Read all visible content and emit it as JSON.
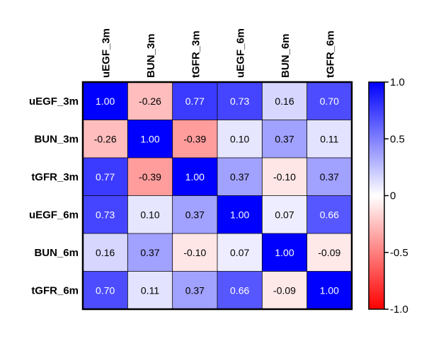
{
  "chart_data": {
    "type": "heatmap",
    "title": "",
    "xlabel": "",
    "ylabel": "",
    "rows": [
      "uEGF_3m",
      "BUN_3m",
      "tGFR_3m",
      "uEGF_6m",
      "BUN_6m",
      "tGFR_6m"
    ],
    "columns": [
      "uEGF_3m",
      "BUN_3m",
      "tGFR_3m",
      "uEGF_6m",
      "BUN_6m",
      "tGFR_6m"
    ],
    "values": [
      [
        1.0,
        -0.26,
        0.77,
        0.73,
        0.16,
        0.7
      ],
      [
        -0.26,
        1.0,
        -0.39,
        0.1,
        0.37,
        0.11
      ],
      [
        0.77,
        -0.39,
        1.0,
        0.37,
        -0.1,
        0.37
      ],
      [
        0.73,
        0.1,
        0.37,
        1.0,
        0.07,
        0.66
      ],
      [
        0.16,
        0.37,
        -0.1,
        0.07,
        1.0,
        -0.09
      ],
      [
        0.7,
        0.11,
        0.37,
        0.66,
        -0.09,
        1.0
      ]
    ],
    "cell_labels": [
      [
        "1.00",
        "-0.26",
        "0.77",
        "0.73",
        "0.16",
        "0.70"
      ],
      [
        "-0.26",
        "1.00",
        "-0.39",
        "0.10",
        "0.37",
        "0.11"
      ],
      [
        "0.77",
        "-0.39",
        "1.00",
        "0.37",
        "-0.10",
        "0.37"
      ],
      [
        "0.73",
        "0.10",
        "0.37",
        "1.00",
        "0.07",
        "0.66"
      ],
      [
        "0.16",
        "0.37",
        "-0.10",
        "0.07",
        "1.00",
        "-0.09"
      ],
      [
        "0.70",
        "0.11",
        "0.37",
        "0.66",
        "-0.09",
        "1.00"
      ]
    ],
    "colorbar": {
      "range": [
        -1.0,
        1.0
      ],
      "ticks": [
        1.0,
        0.5,
        0,
        -0.5,
        -1.0
      ],
      "tick_labels": [
        "1.0",
        "0.5",
        "0",
        "-0.5",
        "-1.0"
      ],
      "colors": {
        "low": "#ff0000",
        "mid": "#ffffff",
        "high": "#0000ff"
      }
    },
    "grid": true,
    "legend": "right"
  }
}
